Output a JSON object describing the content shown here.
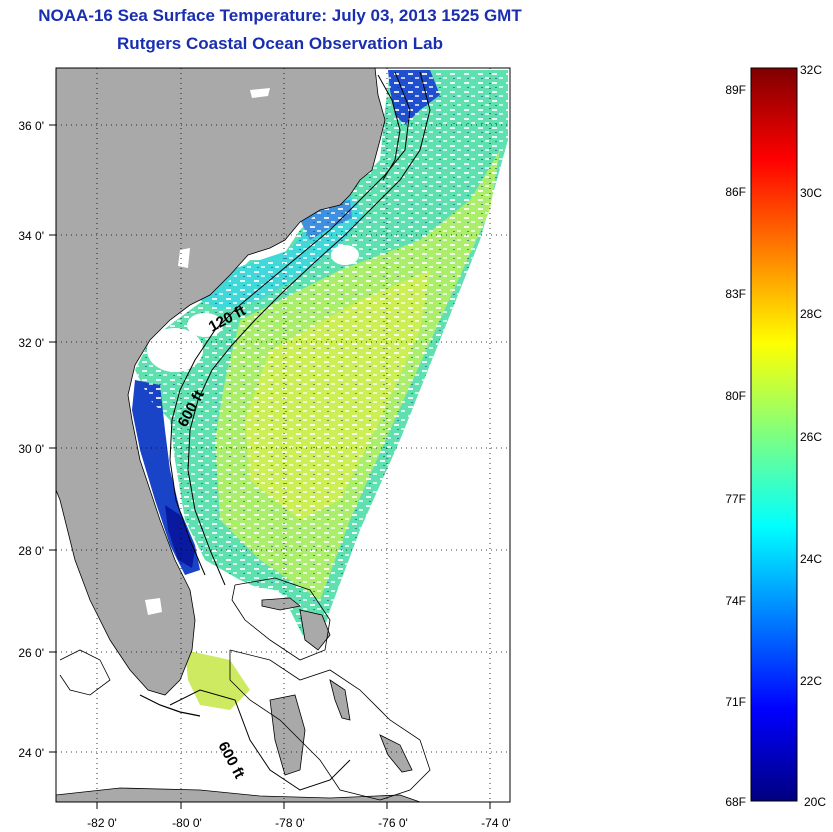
{
  "header": {
    "title": "NOAA-16 Sea Surface Temperature:  July 03, 2013 1525 GMT",
    "subtitle": "Rutgers Coastal Ocean Observation Lab"
  },
  "map": {
    "lon_ticks": [
      "-82 0'",
      "-80 0'",
      "-78 0'",
      "-76 0'",
      "-74 0'"
    ],
    "lat_ticks": [
      "36 0'",
      "34 0'",
      "32 0'",
      "30 0'",
      "28 0'",
      "26 0'",
      "24 0'"
    ],
    "contours": [
      "120 ft",
      "600 ft",
      "600 ft"
    ],
    "colors": {
      "land": "#a9a9a9",
      "ocean": "#ffffff"
    }
  },
  "colorbar": {
    "fahrenheit": [
      "89F",
      "86F",
      "83F",
      "80F",
      "77F",
      "74F",
      "71F",
      "68F"
    ],
    "celsius": [
      "32C",
      "30C",
      "28C",
      "26C",
      "24C",
      "22C",
      "20C"
    ],
    "colors": [
      "#00007f",
      "#0000ff",
      "#007fff",
      "#00ffff",
      "#7fff7f",
      "#ffff00",
      "#ff7f00",
      "#ff0000",
      "#7f0000"
    ]
  }
}
